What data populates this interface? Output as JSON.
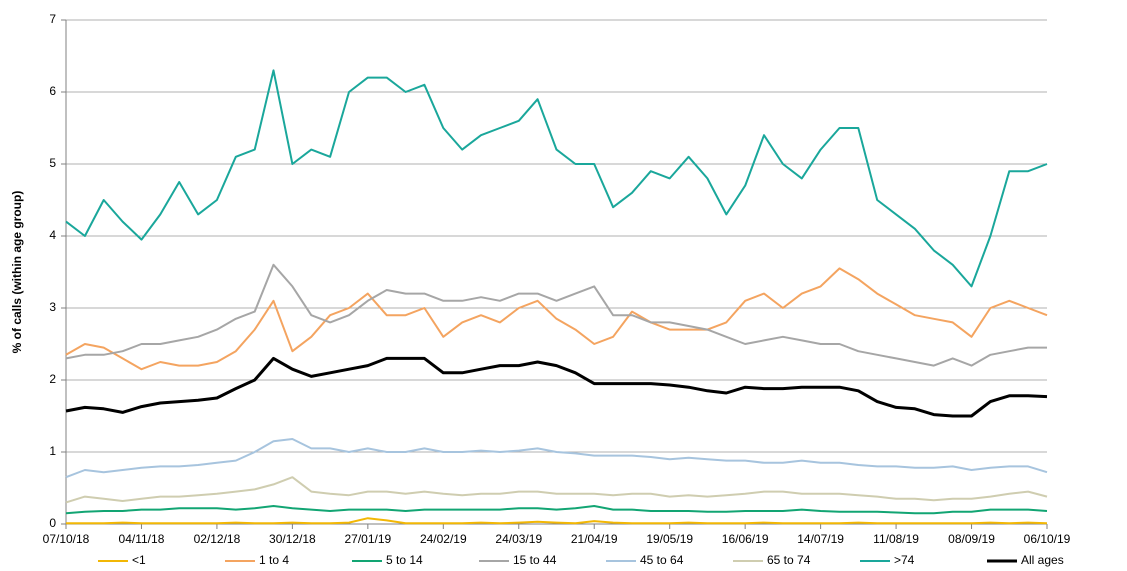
{
  "chart_data": {
    "type": "line",
    "y_label": "% of calls (within age group)",
    "x": [
      "07/10/18",
      "14/10/18",
      "21/10/18",
      "28/10/18",
      "04/11/18",
      "11/11/18",
      "18/11/18",
      "25/11/18",
      "02/12/18",
      "09/12/18",
      "16/12/18",
      "23/12/18",
      "30/12/18",
      "06/01/19",
      "13/01/19",
      "20/01/19",
      "27/01/19",
      "03/02/19",
      "10/02/19",
      "17/02/19",
      "24/02/19",
      "03/03/19",
      "10/03/19",
      "17/03/19",
      "24/03/19",
      "31/03/19",
      "07/04/19",
      "14/04/19",
      "21/04/19",
      "28/04/19",
      "05/05/19",
      "12/05/19",
      "19/05/19",
      "26/05/19",
      "02/06/19",
      "09/06/19",
      "16/06/19",
      "23/06/19",
      "30/06/19",
      "07/07/19",
      "14/07/19",
      "21/07/19",
      "28/07/19",
      "04/08/19",
      "11/08/19",
      "18/08/19",
      "25/08/19",
      "01/09/19",
      "08/09/19",
      "15/09/19",
      "22/09/19",
      "29/09/19",
      "06/10/19"
    ],
    "xlim": [
      "07/10/18",
      "06/10/19"
    ],
    "xticks": [
      "07/10/18",
      "04/11/18",
      "02/12/18",
      "30/12/18",
      "27/01/19",
      "24/02/19",
      "24/03/19",
      "21/04/19",
      "19/05/19",
      "16/06/19",
      "14/07/19",
      "11/08/19",
      "08/09/19",
      "06/10/19"
    ],
    "ylim": [
      0,
      7
    ],
    "yticks": [
      0,
      1,
      2,
      3,
      4,
      5,
      6,
      7
    ],
    "grid": true,
    "legend": "bottom",
    "series": [
      {
        "name": "<1",
        "color": "#f2b705",
        "values": [
          0.01,
          0.01,
          0.01,
          0.02,
          0.01,
          0.01,
          0.01,
          0.01,
          0.01,
          0.02,
          0.01,
          0.01,
          0.02,
          0.01,
          0.01,
          0.02,
          0.08,
          0.05,
          0.01,
          0.01,
          0.01,
          0.01,
          0.02,
          0.01,
          0.02,
          0.03,
          0.02,
          0.01,
          0.04,
          0.02,
          0.01,
          0.01,
          0.01,
          0.02,
          0.01,
          0.01,
          0.01,
          0.02,
          0.01,
          0.01,
          0.01,
          0.01,
          0.02,
          0.01,
          0.01,
          0.01,
          0.01,
          0.01,
          0.01,
          0.02,
          0.01,
          0.02,
          0.01
        ]
      },
      {
        "name": "1 to 4",
        "color": "#f4a460",
        "values": [
          2.35,
          2.5,
          2.45,
          2.3,
          2.15,
          2.25,
          2.2,
          2.2,
          2.25,
          2.4,
          2.7,
          3.1,
          2.4,
          2.6,
          2.9,
          3.0,
          3.2,
          2.9,
          2.9,
          3.0,
          2.6,
          2.8,
          2.9,
          2.8,
          3.0,
          3.1,
          2.85,
          2.7,
          2.5,
          2.6,
          2.95,
          2.8,
          2.7,
          2.7,
          2.7,
          2.8,
          3.1,
          3.2,
          3.0,
          3.2,
          3.3,
          3.55,
          3.4,
          3.2,
          3.05,
          2.9,
          2.85,
          2.8,
          2.6,
          3.0,
          3.1,
          3.0,
          2.9
        ]
      },
      {
        "name": "5 to 14",
        "color": "#12a573",
        "values": [
          0.15,
          0.17,
          0.18,
          0.18,
          0.2,
          0.2,
          0.22,
          0.22,
          0.22,
          0.2,
          0.22,
          0.25,
          0.22,
          0.2,
          0.18,
          0.2,
          0.2,
          0.2,
          0.18,
          0.2,
          0.2,
          0.2,
          0.2,
          0.2,
          0.22,
          0.22,
          0.2,
          0.22,
          0.25,
          0.2,
          0.2,
          0.18,
          0.18,
          0.18,
          0.17,
          0.17,
          0.18,
          0.18,
          0.18,
          0.2,
          0.18,
          0.17,
          0.17,
          0.17,
          0.16,
          0.15,
          0.15,
          0.17,
          0.17,
          0.2,
          0.2,
          0.2,
          0.18
        ]
      },
      {
        "name": "15 to 44",
        "color": "#a6a6a6",
        "values": [
          2.3,
          2.35,
          2.35,
          2.4,
          2.5,
          2.5,
          2.55,
          2.6,
          2.7,
          2.85,
          2.95,
          3.6,
          3.3,
          2.9,
          2.8,
          2.9,
          3.1,
          3.25,
          3.2,
          3.2,
          3.1,
          3.1,
          3.15,
          3.1,
          3.2,
          3.2,
          3.1,
          3.2,
          3.3,
          2.9,
          2.9,
          2.8,
          2.8,
          2.75,
          2.7,
          2.6,
          2.5,
          2.55,
          2.6,
          2.55,
          2.5,
          2.5,
          2.4,
          2.35,
          2.3,
          2.25,
          2.2,
          2.3,
          2.2,
          2.35,
          2.4,
          2.45,
          2.45
        ]
      },
      {
        "name": "45 to 64",
        "color": "#a7c4de",
        "values": [
          0.65,
          0.75,
          0.72,
          0.75,
          0.78,
          0.8,
          0.8,
          0.82,
          0.85,
          0.88,
          1.0,
          1.15,
          1.18,
          1.05,
          1.05,
          1.0,
          1.05,
          1.0,
          1.0,
          1.05,
          1.0,
          1.0,
          1.02,
          1.0,
          1.02,
          1.05,
          1.0,
          0.98,
          0.95,
          0.95,
          0.95,
          0.93,
          0.9,
          0.92,
          0.9,
          0.88,
          0.88,
          0.85,
          0.85,
          0.88,
          0.85,
          0.85,
          0.82,
          0.8,
          0.8,
          0.78,
          0.78,
          0.8,
          0.75,
          0.78,
          0.8,
          0.8,
          0.72
        ]
      },
      {
        "name": "65 to 74",
        "color": "#cfcdb0",
        "values": [
          0.3,
          0.38,
          0.35,
          0.32,
          0.35,
          0.38,
          0.38,
          0.4,
          0.42,
          0.45,
          0.48,
          0.55,
          0.65,
          0.45,
          0.42,
          0.4,
          0.45,
          0.45,
          0.42,
          0.45,
          0.42,
          0.4,
          0.42,
          0.42,
          0.45,
          0.45,
          0.42,
          0.42,
          0.42,
          0.4,
          0.42,
          0.42,
          0.38,
          0.4,
          0.38,
          0.4,
          0.42,
          0.45,
          0.45,
          0.42,
          0.42,
          0.42,
          0.4,
          0.38,
          0.35,
          0.35,
          0.33,
          0.35,
          0.35,
          0.38,
          0.42,
          0.45,
          0.38
        ]
      },
      {
        "name": ">74",
        "color": "#1aa79b",
        "values": [
          4.2,
          4.0,
          4.5,
          4.2,
          3.95,
          4.3,
          4.75,
          4.3,
          4.5,
          5.1,
          5.2,
          6.3,
          5.0,
          5.2,
          5.1,
          6.0,
          6.2,
          6.2,
          6.0,
          6.1,
          5.5,
          5.2,
          5.4,
          5.5,
          5.6,
          5.9,
          5.2,
          5.0,
          5.0,
          4.4,
          4.6,
          4.9,
          4.8,
          5.1,
          4.8,
          4.3,
          4.7,
          5.4,
          5.0,
          4.8,
          5.2,
          5.5,
          5.5,
          4.5,
          4.3,
          4.1,
          3.8,
          3.6,
          3.3,
          4.0,
          4.9,
          4.9,
          5.0
        ]
      },
      {
        "name": "All ages",
        "color": "#000000",
        "values": [
          1.57,
          1.62,
          1.6,
          1.55,
          1.63,
          1.68,
          1.7,
          1.72,
          1.75,
          1.88,
          2.0,
          2.3,
          2.15,
          2.05,
          2.1,
          2.15,
          2.2,
          2.3,
          2.3,
          2.3,
          2.1,
          2.1,
          2.15,
          2.2,
          2.2,
          2.25,
          2.2,
          2.1,
          1.95,
          1.95,
          1.95,
          1.95,
          1.93,
          1.9,
          1.85,
          1.82,
          1.9,
          1.88,
          1.88,
          1.9,
          1.9,
          1.9,
          1.85,
          1.7,
          1.62,
          1.6,
          1.52,
          1.5,
          1.5,
          1.7,
          1.78,
          1.78,
          1.77
        ]
      }
    ]
  }
}
